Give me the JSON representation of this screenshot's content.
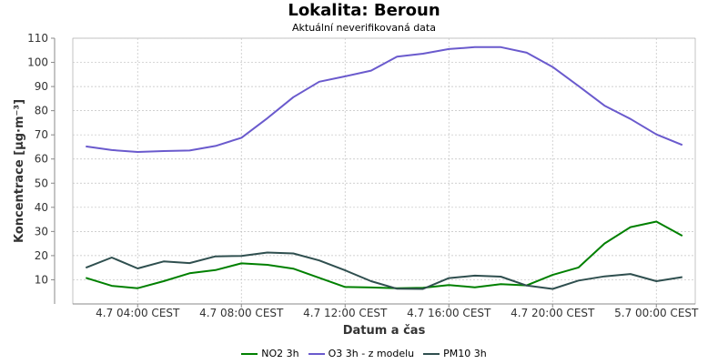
{
  "chart_data": {
    "type": "line",
    "title": "Lokalita: Beroun",
    "subtitle": "Aktuální neverifikovaná data",
    "xlabel": "Datum a čas",
    "ylabel": "Koncentrace [µg·m⁻³]",
    "ylim": [
      0,
      110
    ],
    "yticks": [
      10,
      20,
      30,
      40,
      50,
      60,
      70,
      80,
      90,
      100,
      110
    ],
    "x_hours": [
      0,
      1,
      2,
      3,
      4,
      5,
      6,
      7,
      8,
      9,
      10,
      11,
      12,
      13,
      14,
      15,
      16,
      17,
      18,
      19,
      20,
      21,
      22,
      23
    ],
    "xlim": [
      -0.5,
      23.5
    ],
    "xticks": [
      {
        "x": 2,
        "label": "4.7 04:00 CEST"
      },
      {
        "x": 6,
        "label": "4.7 08:00 CEST"
      },
      {
        "x": 10,
        "label": "4.7 12:00 CEST"
      },
      {
        "x": 14,
        "label": "4.7 16:00 CEST"
      },
      {
        "x": 18,
        "label": "4.7 20:00 CEST"
      },
      {
        "x": 22,
        "label": "5.7 00:00 CEST"
      }
    ],
    "grid": true,
    "legend_position": "bottom",
    "series": [
      {
        "name": "NO2 3h",
        "color": "#008000",
        "values": [
          10.8,
          7.5,
          6.5,
          9.4,
          12.7,
          14.0,
          16.8,
          16.2,
          14.6,
          10.8,
          7.0,
          6.8,
          6.5,
          6.7,
          7.8,
          6.9,
          8.2,
          7.7,
          12.0,
          15.1,
          25.0,
          31.8,
          34.1,
          28.2
        ]
      },
      {
        "name": "O3 3h - z modelu",
        "color": "#6a5acd",
        "values": [
          65.2,
          63.7,
          62.9,
          63.3,
          63.5,
          65.4,
          68.8,
          76.9,
          85.6,
          92.0,
          94.2,
          96.6,
          102.4,
          103.6,
          105.5,
          106.3,
          106.3,
          104.0,
          98.1,
          90.2,
          82.1,
          76.6,
          70.2,
          65.8
        ]
      },
      {
        "name": "PM10 3h",
        "color": "#2f4f4f",
        "values": [
          15.0,
          19.2,
          14.7,
          17.6,
          16.9,
          19.7,
          19.9,
          21.3,
          20.9,
          18.0,
          13.9,
          9.4,
          6.3,
          6.2,
          10.7,
          11.7,
          11.3,
          7.6,
          6.2,
          9.7,
          11.4,
          12.4,
          9.4,
          11.1
        ]
      }
    ]
  }
}
